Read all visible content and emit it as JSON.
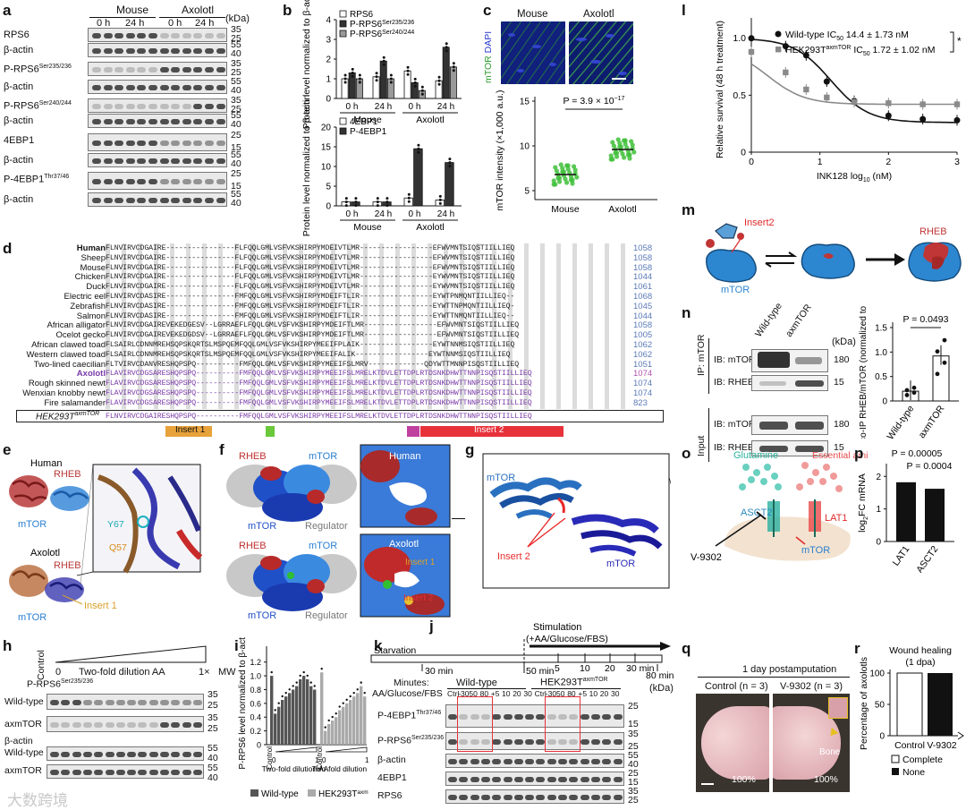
{
  "panels": {
    "a": {
      "label": "a",
      "groups": [
        "Mouse",
        "Axolotl"
      ],
      "times": [
        "0 h",
        "24 h",
        "0 h",
        "24 h"
      ],
      "unit": "(kDa)",
      "rows": [
        {
          "name": "RPS6",
          "mw": [
            "35",
            "25"
          ]
        },
        {
          "name": "β-actin",
          "mw": [
            "55",
            "40"
          ]
        },
        {
          "name": "P-RPS6",
          "sup": "Ser235/236",
          "mw": [
            "35",
            "25"
          ]
        },
        {
          "name": "β-actin",
          "mw": [
            "55",
            "40"
          ]
        },
        {
          "name": "P-RPS6",
          "sup": "Ser240/244",
          "mw": [
            "35",
            "25"
          ]
        },
        {
          "name": "β-actin",
          "mw": [
            "55",
            "40"
          ]
        },
        {
          "name": "4EBP1",
          "mw": [
            "25",
            "15"
          ]
        },
        {
          "name": "β-actin",
          "mw": [
            "55",
            "40"
          ]
        },
        {
          "name": "P-4EBP1",
          "sup": "Thr37/46",
          "mw": [
            "25",
            "15"
          ]
        },
        {
          "name": "β-actin",
          "mw": [
            "55",
            "40"
          ]
        }
      ]
    },
    "b": {
      "label": "b",
      "ylabel": "Protein level normalized to β-actin",
      "top": {
        "legend": [
          "RPS6",
          "P-RPS6",
          "P-RPS6"
        ],
        "legend_sup": [
          "",
          "Ser235/236",
          "Ser240/244"
        ],
        "yticks": [
          "0",
          "1",
          "2",
          "3",
          "4"
        ],
        "xticks": [
          "0 h",
          "24 h",
          "0 h",
          "24 h"
        ],
        "groups": [
          "Mouse",
          "Axolotl"
        ]
      },
      "bottom": {
        "legend": [
          "4EBP1",
          "P-4EBP1"
        ],
        "yticks": [
          "0",
          "5",
          "10",
          "15",
          "20"
        ],
        "xticks": [
          "0 h",
          "24 h",
          "0 h",
          "24 h"
        ],
        "groups": [
          "Mouse",
          "Axolotl"
        ]
      }
    },
    "c": {
      "label": "c",
      "img_labels": [
        "Mouse",
        "Axolotl"
      ],
      "stain": [
        "mTOR",
        "DAPI"
      ],
      "ylabel": "mTOR intensity (×1,000 a.u.)",
      "yticks": [
        "5",
        "10",
        "15"
      ],
      "pvalue": "P = 3.9 × 10",
      "pexp": "−17",
      "xticks": [
        "Mouse",
        "Axolotl"
      ]
    },
    "d": {
      "label": "d",
      "species": [
        "Human",
        "Sheep",
        "Mouse",
        "Chicken",
        "Duck",
        "Electric eel",
        "Zebrafish",
        "Salmon",
        "African alligator",
        "Ocelot gecko",
        "African clawed toad",
        "Western clawed toad",
        "Two-lined caecilian",
        "Axolotl",
        "Rough skinned newt",
        "Wenxian knobby newt",
        "Fire salamander"
      ],
      "numbers": [
        "1058",
        "1058",
        "1058",
        "1044",
        "1061",
        "1068",
        "1045",
        "1044",
        "1058",
        "1005",
        "1062",
        "1062",
        "1051",
        "1074",
        "1074",
        "1074",
        "823"
      ],
      "hek_label": "HEK293T",
      "hek_sup": "axmTOR",
      "inserts": [
        "Insert 1",
        "Insert 2"
      ]
    },
    "e": {
      "label": "e",
      "labels": [
        "Human",
        "RHEB",
        "mTOR",
        "Y67",
        "Q57",
        "Axolotl",
        "RHEB",
        "mTOR",
        "Insert 1"
      ]
    },
    "f": {
      "label": "f",
      "labels": [
        "RHEB",
        "mTOR",
        "mTOR",
        "Regulator",
        "Human",
        "RHEB",
        "mTOR",
        "mTOR",
        "Regulator",
        "Axolotl",
        "Insert 1",
        "Insert 2"
      ]
    },
    "g": {
      "label": "g",
      "labels": [
        "mTOR",
        "Insert 2",
        "mTOR"
      ]
    },
    "h": {
      "label": "h",
      "control": "Control",
      "zero": "0",
      "dilution": "Two-fold dilution AA",
      "one": "1×",
      "mw_head": "MW",
      "title": "P-RPS6",
      "title_sup": "Ser235/236",
      "rows": [
        "Wild-type",
        "axmTOR",
        "β-actin",
        "Wild-type",
        "axmTOR"
      ],
      "mw": [
        "35",
        "25",
        "35",
        "25",
        "55",
        "40",
        "55",
        "40"
      ]
    },
    "i": {
      "label": "i",
      "ylabel": "P-RPS6 level normalized to β-actin",
      "yticks": [
        "0",
        "0.2",
        "0.4",
        "0.6",
        "0.8",
        "1.0",
        "1.2"
      ],
      "xlabel": "Two-fold dilution AA",
      "control": "Control",
      "legend": [
        "Wild-type",
        "HEK293T"
      ],
      "legend_sup": "axmTOR"
    },
    "j": {
      "label": "j",
      "stimulation": "Stimulation",
      "stim_detail": "(+AA/Glucose/FBS)",
      "starvation": "Starvation",
      "times": [
        "30 min",
        "50 min",
        "5",
        "10",
        "20",
        "30 min",
        "80 min"
      ]
    },
    "k": {
      "label": "k",
      "minutes": "Minutes:",
      "conditions": "AA/Glucose/FBS",
      "wt": "Wild-type",
      "hek": "HEK293T",
      "hek_sup": "axmTOR",
      "lanes": [
        "Ctrl",
        "-30",
        "50",
        "80",
        "+5",
        "10",
        "20",
        "30",
        "Ctrl",
        "-30",
        "50",
        "80",
        "+5",
        "10",
        "20",
        "30"
      ],
      "unit": "(kDa)",
      "rows": [
        {
          "name": "P-4EBP1",
          "sup": "Thr37/46",
          "mw": [
            "25",
            "15"
          ]
        },
        {
          "name": "P-RPS6",
          "sup": "Ser235/236",
          "mw": [
            "35",
            "25"
          ]
        },
        {
          "name": "β-actin",
          "mw": [
            "55",
            "40"
          ]
        },
        {
          "name": "4EBP1",
          "mw": [
            "25",
            "15"
          ]
        },
        {
          "name": "RPS6",
          "mw": [
            "35",
            "25"
          ]
        },
        {
          "name": "β-actin",
          "mw": [
            "55",
            "40"
          ]
        }
      ]
    },
    "l": {
      "label": "l",
      "ylabel": "Relative survival (48 h treatment)",
      "xlabel": "INK128 log",
      "xlabel_sub": "10",
      "xlabel_unit": " (nM)",
      "legend": [
        {
          "name": "Wild-type IC",
          "sub": "50",
          "val": " 14.4 ± 1.73 nM"
        },
        {
          "name": "HEK293T",
          "sup": "axmTOR",
          "name2": " IC",
          "sub": "50",
          "val": " 1.72 ± 1.02 nM"
        }
      ],
      "star": "*",
      "xticks": [
        "0",
        "1",
        "2",
        "3"
      ],
      "yticks": [
        "0",
        "0.5",
        "1.0"
      ]
    },
    "m": {
      "label": "m",
      "labels": [
        "Insert2",
        "RHEB",
        "mTOR"
      ]
    },
    "n": {
      "label": "n",
      "lanes": [
        "Wild-type",
        "axmTOR"
      ],
      "unit": "(kDa)",
      "ip": "IP: mTOR",
      "input": "Input",
      "rows": [
        "IB: mTOR",
        "IB: RHEB",
        "IB: mTOR",
        "IB: RHEB"
      ],
      "mw": [
        "180",
        "15",
        "180",
        "15"
      ],
      "ylabel": "co-IP RHEB/mTOR (normalized to input)",
      "pvalue": "P = 0.0493",
      "yticks": [
        "0",
        "0.5",
        "1.0",
        "1.5"
      ],
      "xticks": [
        "Wild-type",
        "axmTOR"
      ]
    },
    "o": {
      "label": "o",
      "labels": [
        "Glutamine",
        "Essential amino acids",
        "ASCT2",
        "LAT1",
        "V-9302",
        "mTOR"
      ]
    },
    "p": {
      "label": "p",
      "ylabel": "log",
      "ylabel_sub": "2",
      "ylabel_rest": "FC mRNA",
      "pvalues": [
        "P = 0.00005",
        "P = 0.0004"
      ],
      "yticks": [
        "0",
        "1",
        "2"
      ],
      "xticks": [
        "LAT1",
        "ASCT2"
      ]
    },
    "q": {
      "label": "q",
      "title": "1 day postamputation",
      "conds": [
        "Control (n = 3)",
        "V-9302 (n = 3)"
      ],
      "pct": [
        "100%",
        "100%"
      ],
      "bone": "Bone"
    },
    "r": {
      "label": "r",
      "title": "Wound healing",
      "subtitle": "(1 dpa)",
      "ylabel": "Percentage of axolotls",
      "yticks": [
        "0",
        "50",
        "100"
      ],
      "xticks": [
        "Control",
        "V-9302"
      ],
      "legend": [
        "Complete",
        "None"
      ]
    },
    "watermark": "大数跨境"
  },
  "colors": {
    "black": "#111111",
    "gray": "#8a8a8a",
    "green": "#3fbf3a",
    "red_insert": "#e8323a",
    "orange_insert": "#e8a23a",
    "purple": "#7a3aa8",
    "mtor_blue": "#2a7fd0",
    "rheb_red": "#c8282a"
  },
  "chart_data": [
    {
      "type": "bar",
      "panel": "b-top",
      "categories": [
        "Mouse 0 h",
        "Mouse 24 h",
        "Axolotl 0 h",
        "Axolotl 24 h"
      ],
      "series": [
        {
          "name": "RPS6",
          "values": [
            1.0,
            1.1,
            1.4,
            0.9
          ]
        },
        {
          "name": "P-RPS6 Ser235/236",
          "values": [
            1.3,
            1.9,
            0.8,
            2.6
          ]
        },
        {
          "name": "P-RPS6 Ser240/244",
          "values": [
            1.0,
            1.0,
            0.4,
            1.6
          ]
        }
      ],
      "ylim": [
        0,
        4
      ]
    },
    {
      "type": "bar",
      "panel": "b-bottom",
      "categories": [
        "Mouse 0 h",
        "Mouse 24 h",
        "Axolotl 0 h",
        "Axolotl 24 h"
      ],
      "series": [
        {
          "name": "4EBP1",
          "values": [
            1.0,
            1.0,
            2.0,
            1.5
          ]
        },
        {
          "name": "P-4EBP1",
          "values": [
            1.0,
            1.0,
            14.5,
            11.0
          ]
        }
      ],
      "ylim": [
        0,
        20
      ]
    },
    {
      "type": "scatter",
      "panel": "c",
      "categories": [
        "Mouse",
        "Axolotl"
      ],
      "means": [
        6.8,
        9.6
      ],
      "ylim": [
        4,
        15
      ]
    },
    {
      "type": "bar",
      "panel": "i",
      "series": [
        {
          "name": "Wild-type",
          "values": [
            1.0,
            0.45,
            0.55,
            0.65,
            0.7,
            0.75,
            0.8,
            0.85,
            0.95,
            1.0,
            0.95,
            0.85,
            0.8
          ]
        },
        {
          "name": "HEK293T axmTOR",
          "values": [
            1.05,
            0.2,
            0.3,
            0.35,
            0.4,
            0.5,
            0.55,
            0.6,
            0.65,
            0.7,
            0.75,
            0.85,
            0.7
          ]
        }
      ],
      "ylim": [
        0,
        1.3
      ]
    },
    {
      "type": "line",
      "panel": "l",
      "series": [
        {
          "name": "Wild-type",
          "x": [
            0,
            0.5,
            0.8,
            1.1,
            1.5,
            2.0,
            2.5,
            3.0
          ],
          "values": [
            1.0,
            0.93,
            0.85,
            0.62,
            0.45,
            0.32,
            0.29,
            0.28
          ]
        },
        {
          "name": "HEK293T axmTOR",
          "x": [
            0,
            0.5,
            0.8,
            1.1,
            1.5,
            2.0,
            2.5,
            3.0
          ],
          "values": [
            0.88,
            0.7,
            0.55,
            0.48,
            0.44,
            0.43,
            0.42,
            0.42
          ]
        }
      ],
      "xlim": [
        0,
        3
      ],
      "ylim": [
        0,
        1.1
      ]
    },
    {
      "type": "bar",
      "panel": "n",
      "categories": [
        "Wild-type",
        "axmTOR"
      ],
      "values": [
        0.2,
        0.92
      ],
      "ylim": [
        0,
        1.5
      ]
    },
    {
      "type": "bar",
      "panel": "p",
      "categories": [
        "LAT1",
        "ASCT2"
      ],
      "values": [
        1.82,
        1.62
      ],
      "ylim": [
        0,
        2.2
      ]
    },
    {
      "type": "bar",
      "panel": "r",
      "categories": [
        "Control",
        "V-9302"
      ],
      "series": [
        {
          "name": "Complete",
          "values": [
            100,
            0
          ]
        },
        {
          "name": "None",
          "values": [
            0,
            100
          ]
        }
      ],
      "ylim": [
        0,
        100
      ]
    }
  ]
}
